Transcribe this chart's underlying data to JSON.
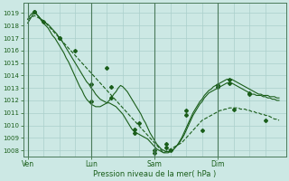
{
  "xlabel": "Pression niveau de la mer( hPa )",
  "bg_color": "#cce8e4",
  "grid_color": "#aacfcb",
  "line_color": "#1a5e1a",
  "ylim": [
    1007.5,
    1019.8
  ],
  "yticks": [
    1008,
    1009,
    1010,
    1011,
    1012,
    1013,
    1014,
    1015,
    1016,
    1017,
    1018,
    1019
  ],
  "xtick_labels": [
    "Ven",
    "Lun",
    "Sam",
    "Dim"
  ],
  "xtick_positions": [
    0,
    28,
    56,
    84
  ],
  "vline_positions": [
    0,
    28,
    56,
    84
  ],
  "n_points": 112,
  "series1": [
    1018.5,
    1018.8,
    1019.0,
    1019.1,
    1018.9,
    1018.7,
    1018.5,
    1018.4,
    1018.2,
    1018.1,
    1017.9,
    1017.7,
    1017.5,
    1017.3,
    1017.0,
    1016.8,
    1016.5,
    1016.2,
    1015.9,
    1015.6,
    1015.3,
    1015.0,
    1014.7,
    1014.4,
    1014.1,
    1013.8,
    1013.5,
    1013.3,
    1013.0,
    1012.8,
    1012.5,
    1012.3,
    1012.1,
    1012.0,
    1011.9,
    1011.8,
    1011.8,
    1011.7,
    1011.6,
    1011.5,
    1011.3,
    1011.1,
    1010.9,
    1010.6,
    1010.3,
    1010.0,
    1009.7,
    1009.5,
    1009.4,
    1009.3,
    1009.2,
    1009.1,
    1009.0,
    1008.9,
    1008.7,
    1008.5,
    1008.3,
    1008.1,
    1008.0,
    1007.9,
    1007.8,
    1007.8,
    1007.8,
    1007.9,
    1008.0,
    1008.2,
    1008.4,
    1008.6,
    1008.9,
    1009.2,
    1009.6,
    1010.0,
    1010.4,
    1010.8,
    1011.1,
    1011.4,
    1011.7,
    1011.9,
    1012.2,
    1012.4,
    1012.6,
    1012.7,
    1012.8,
    1012.9,
    1013.0,
    1013.1,
    1013.2,
    1013.3,
    1013.4,
    1013.4,
    1013.4,
    1013.3,
    1013.2,
    1013.1,
    1013.0,
    1012.9,
    1012.8,
    1012.7,
    1012.6,
    1012.5,
    1012.5,
    1012.4,
    1012.4,
    1012.4,
    1012.3,
    1012.3,
    1012.2,
    1012.2,
    1012.1,
    1012.1,
    1012.0,
    1012.0
  ],
  "series2": [
    1018.2,
    1018.5,
    1018.8,
    1019.1,
    1018.9,
    1018.7,
    1018.4,
    1018.2,
    1018.0,
    1017.8,
    1017.5,
    1017.2,
    1017.0,
    1016.7,
    1016.4,
    1016.1,
    1015.8,
    1015.4,
    1015.1,
    1014.7,
    1014.3,
    1013.9,
    1013.5,
    1013.1,
    1012.8,
    1012.4,
    1012.1,
    1011.9,
    1011.7,
    1011.6,
    1011.5,
    1011.5,
    1011.5,
    1011.6,
    1011.7,
    1011.8,
    1012.0,
    1012.2,
    1012.5,
    1012.7,
    1013.0,
    1013.2,
    1013.1,
    1012.9,
    1012.7,
    1012.4,
    1012.1,
    1011.8,
    1011.5,
    1011.2,
    1010.9,
    1010.5,
    1010.2,
    1009.8,
    1009.4,
    1009.1,
    1008.8,
    1008.5,
    1008.3,
    1008.1,
    1008.0,
    1007.9,
    1007.9,
    1007.9,
    1008.0,
    1008.2,
    1008.4,
    1008.7,
    1009.0,
    1009.4,
    1009.8,
    1010.2,
    1010.6,
    1011.0,
    1011.3,
    1011.6,
    1011.9,
    1012.1,
    1012.4,
    1012.6,
    1012.8,
    1012.9,
    1013.1,
    1013.2,
    1013.3,
    1013.4,
    1013.5,
    1013.6,
    1013.7,
    1013.7,
    1013.7,
    1013.6,
    1013.5,
    1013.4,
    1013.3,
    1013.2,
    1013.1,
    1013.0,
    1012.9,
    1012.8,
    1012.7,
    1012.6,
    1012.5,
    1012.5,
    1012.4,
    1012.4,
    1012.4,
    1012.3,
    1012.3,
    1012.3,
    1012.2,
    1012.2
  ],
  "series3": [
    1018.5,
    1018.6,
    1018.7,
    1018.8,
    1018.7,
    1018.6,
    1018.5,
    1018.3,
    1018.2,
    1018.0,
    1017.8,
    1017.6,
    1017.4,
    1017.2,
    1017.0,
    1016.8,
    1016.6,
    1016.4,
    1016.2,
    1016.0,
    1015.8,
    1015.6,
    1015.4,
    1015.2,
    1015.0,
    1014.8,
    1014.6,
    1014.4,
    1014.2,
    1014.0,
    1013.8,
    1013.6,
    1013.4,
    1013.2,
    1013.0,
    1012.8,
    1012.6,
    1012.4,
    1012.2,
    1012.0,
    1011.8,
    1011.6,
    1011.4,
    1011.2,
    1011.0,
    1010.8,
    1010.6,
    1010.4,
    1010.2,
    1010.0,
    1009.8,
    1009.6,
    1009.4,
    1009.2,
    1009.0,
    1008.8,
    1008.6,
    1008.4,
    1008.2,
    1008.0,
    1007.8,
    1007.9,
    1008.0,
    1008.1,
    1008.2,
    1008.3,
    1008.4,
    1008.5,
    1008.6,
    1008.8,
    1009.0,
    1009.2,
    1009.4,
    1009.6,
    1009.8,
    1010.0,
    1010.2,
    1010.4,
    1010.5,
    1010.6,
    1010.7,
    1010.8,
    1010.9,
    1011.0,
    1011.1,
    1011.2,
    1011.2,
    1011.3,
    1011.3,
    1011.4,
    1011.4,
    1011.4,
    1011.4,
    1011.4,
    1011.3,
    1011.3,
    1011.3,
    1011.2,
    1011.2,
    1011.1,
    1011.1,
    1011.0,
    1011.0,
    1010.9,
    1010.9,
    1010.8,
    1010.8,
    1010.7,
    1010.6,
    1010.5,
    1010.5,
    1010.4
  ],
  "markers1_x": [
    3,
    14,
    28,
    37,
    47,
    56,
    61,
    70,
    84,
    89,
    98
  ],
  "markers1_y": [
    1019.1,
    1017.0,
    1013.3,
    1012.2,
    1009.4,
    1007.8,
    1008.2,
    1010.8,
    1013.2,
    1013.4,
    1012.5
  ],
  "markers2_x": [
    3,
    14,
    28,
    37,
    47,
    56,
    61,
    70,
    84,
    89,
    98
  ],
  "markers2_y": [
    1019.1,
    1017.0,
    1011.9,
    1013.1,
    1009.7,
    1008.0,
    1008.5,
    1011.2,
    1013.1,
    1013.7,
    1012.6
  ],
  "markers3_x": [
    7,
    21,
    35,
    49,
    63,
    77,
    91,
    105
  ],
  "markers3_y": [
    1018.3,
    1016.0,
    1014.6,
    1010.2,
    1008.0,
    1009.6,
    1011.3,
    1010.4
  ]
}
